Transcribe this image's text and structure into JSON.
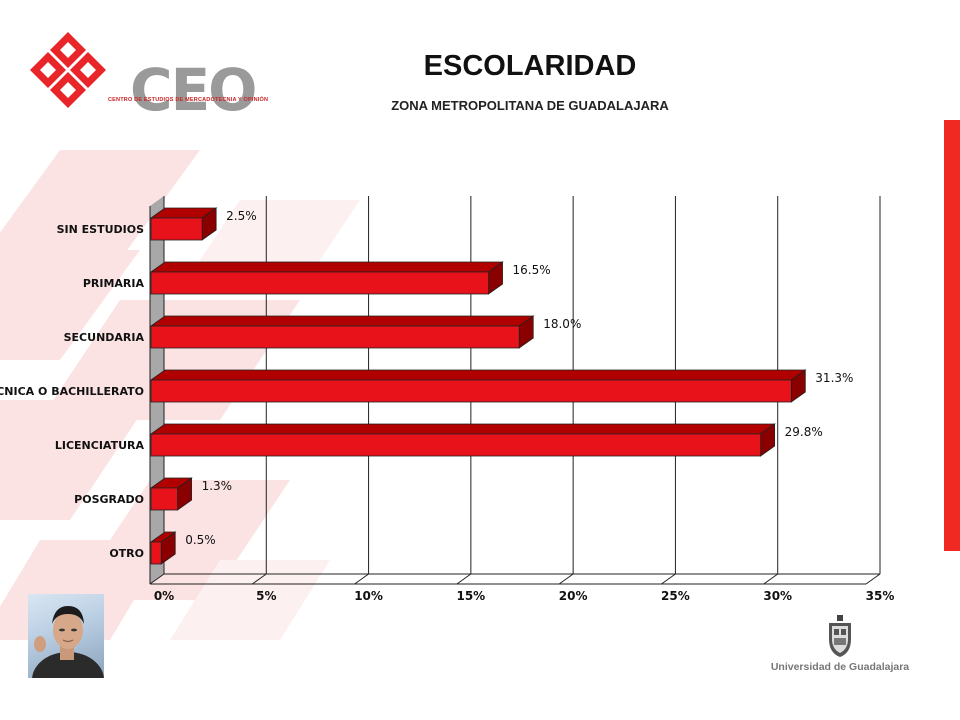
{
  "header": {
    "title": "ESCOLARIDAD",
    "subtitle": "ZONA METROPOLITANA DE GUADALAJARA"
  },
  "logo": {
    "name": "CEO",
    "tagline": "CENTRO DE ESTUDIOS DE MERCADOTECNIA Y OPINIÓN",
    "accent": "#e8262a"
  },
  "university": {
    "name": "Universidad de Guadalajara"
  },
  "chart_data": {
    "type": "bar",
    "orientation": "horizontal",
    "categories": [
      "SIN ESTUDIOS",
      "PRIMARIA",
      "SECUNDARIA",
      "TÉCNICA O BACHILLERATO",
      "LICENCIATURA",
      "POSGRADO",
      "OTRO"
    ],
    "values": [
      2.5,
      16.5,
      18.0,
      31.3,
      29.8,
      1.3,
      0.5
    ],
    "data_labels": [
      "2.5%",
      "16.5%",
      "18.0%",
      "31.3%",
      "29.8%",
      "1.3%",
      "0.5%"
    ],
    "xlim": [
      0,
      35
    ],
    "xticks": [
      "0%",
      "5%",
      "10%",
      "15%",
      "20%",
      "25%",
      "30%",
      "35%"
    ],
    "grid": true,
    "bar_color": "#e8121a"
  }
}
